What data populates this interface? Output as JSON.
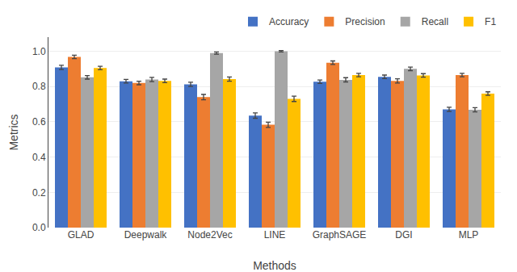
{
  "chart_data": {
    "type": "bar",
    "xlabel": "Methods",
    "ylabel": "Metrics",
    "categories": [
      "GLAD",
      "Deepwalk",
      "Node2Vec",
      "LINE",
      "GraphSAGE",
      "DGI",
      "MLP"
    ],
    "series": [
      {
        "name": "Accuracy",
        "color": "#4472C4",
        "values": [
          0.908,
          0.83,
          0.812,
          0.635,
          0.827,
          0.855,
          0.67
        ],
        "errors": [
          0.012,
          0.01,
          0.012,
          0.015,
          0.01,
          0.01,
          0.012
        ]
      },
      {
        "name": "Precision",
        "color": "#ED7D31",
        "values": [
          0.968,
          0.82,
          0.74,
          0.583,
          0.935,
          0.832,
          0.865
        ],
        "errors": [
          0.01,
          0.01,
          0.015,
          0.015,
          0.01,
          0.012,
          0.01
        ]
      },
      {
        "name": "Recall",
        "color": "#A6A6A6",
        "values": [
          0.852,
          0.84,
          0.99,
          1.0,
          0.838,
          0.9,
          0.668
        ],
        "errors": [
          0.01,
          0.012,
          0.006,
          0.004,
          0.012,
          0.01,
          0.012
        ]
      },
      {
        "name": "F1",
        "color": "#FFC000",
        "values": [
          0.905,
          0.832,
          0.842,
          0.73,
          0.865,
          0.863,
          0.76
        ],
        "errors": [
          0.01,
          0.01,
          0.012,
          0.015,
          0.01,
          0.01,
          0.01
        ]
      }
    ],
    "ylim": [
      0,
      1.08
    ],
    "yticks": [
      {
        "value": 0,
        "label": "0.0"
      },
      0.2,
      0.4,
      0.6,
      0.8,
      {
        "value": 1,
        "label": "1.0"
      }
    ],
    "grid": true,
    "legend": "upper right"
  }
}
